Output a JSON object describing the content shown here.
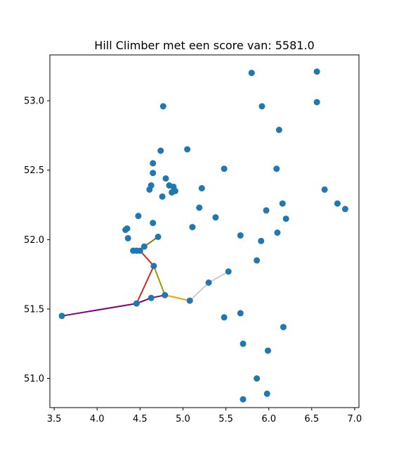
{
  "chart_data": {
    "type": "scatter",
    "title": "Hill Climber met een score van: 5581.0",
    "xlabel": "",
    "ylabel": "",
    "xlim": [
      3.45,
      7.05
    ],
    "ylim": [
      50.79,
      53.33
    ],
    "xticks": [
      3.5,
      4.0,
      4.5,
      5.0,
      5.5,
      6.0,
      6.5,
      7.0
    ],
    "xtick_labels": [
      "3.5",
      "4.0",
      "4.5",
      "5.0",
      "5.5",
      "6.0",
      "6.5",
      "7.0"
    ],
    "yticks": [
      51.0,
      51.5,
      52.0,
      52.5,
      53.0
    ],
    "ytick_labels": [
      "51.0",
      "51.5",
      "52.0",
      "52.5",
      "53.0"
    ],
    "grid": false,
    "point_color": "#1f77b4",
    "points": [
      [
        3.59,
        51.45
      ],
      [
        4.46,
        51.54
      ],
      [
        4.63,
        51.58
      ],
      [
        4.79,
        51.6
      ],
      [
        5.08,
        51.56
      ],
      [
        5.3,
        51.69
      ],
      [
        5.53,
        51.77
      ],
      [
        4.66,
        51.81
      ],
      [
        4.42,
        51.92
      ],
      [
        4.46,
        51.92
      ],
      [
        4.5,
        51.92
      ],
      [
        4.55,
        51.95
      ],
      [
        4.71,
        52.02
      ],
      [
        4.36,
        52.01
      ],
      [
        4.33,
        52.07
      ],
      [
        4.35,
        52.08
      ],
      [
        4.65,
        52.12
      ],
      [
        4.48,
        52.17
      ],
      [
        4.61,
        52.36
      ],
      [
        4.63,
        52.39
      ],
      [
        4.76,
        52.31
      ],
      [
        4.8,
        52.44
      ],
      [
        4.84,
        52.39
      ],
      [
        4.87,
        52.34
      ],
      [
        4.89,
        52.38
      ],
      [
        4.91,
        52.35
      ],
      [
        4.65,
        52.48
      ],
      [
        4.65,
        52.55
      ],
      [
        4.74,
        52.64
      ],
      [
        5.05,
        52.65
      ],
      [
        4.77,
        52.96
      ],
      [
        5.22,
        52.37
      ],
      [
        5.19,
        52.23
      ],
      [
        5.11,
        52.09
      ],
      [
        5.38,
        52.16
      ],
      [
        5.48,
        52.51
      ],
      [
        5.67,
        52.03
      ],
      [
        5.8,
        53.2
      ],
      [
        5.92,
        52.96
      ],
      [
        5.91,
        51.99
      ],
      [
        5.86,
        51.85
      ],
      [
        5.97,
        52.21
      ],
      [
        6.09,
        52.51
      ],
      [
        6.12,
        52.79
      ],
      [
        6.16,
        52.26
      ],
      [
        6.2,
        52.15
      ],
      [
        6.1,
        52.05
      ],
      [
        6.56,
        53.21
      ],
      [
        6.56,
        52.99
      ],
      [
        6.65,
        52.36
      ],
      [
        6.8,
        52.26
      ],
      [
        6.89,
        52.22
      ],
      [
        5.48,
        51.44
      ],
      [
        5.67,
        51.47
      ],
      [
        5.7,
        51.25
      ],
      [
        5.99,
        51.2
      ],
      [
        6.17,
        51.37
      ],
      [
        5.86,
        51.0
      ],
      [
        5.7,
        50.85
      ],
      [
        5.98,
        50.89
      ]
    ],
    "routes": [
      {
        "color": "#800080",
        "points": [
          [
            3.59,
            51.45
          ],
          [
            4.46,
            51.54
          ],
          [
            4.63,
            51.58
          ],
          [
            4.79,
            51.6
          ]
        ]
      },
      {
        "color": "#d62728",
        "points": [
          [
            4.46,
            51.54
          ],
          [
            4.66,
            51.81
          ],
          [
            4.5,
            51.92
          ]
        ]
      },
      {
        "color": "#0000ff",
        "points": [
          [
            4.42,
            51.92
          ],
          [
            4.5,
            51.92
          ]
        ]
      },
      {
        "color": "#ff9900",
        "points": [
          [
            4.79,
            51.6
          ],
          [
            5.08,
            51.56
          ]
        ]
      },
      {
        "color": "#cccccc",
        "points": [
          [
            5.08,
            51.56
          ],
          [
            5.3,
            51.69
          ],
          [
            5.53,
            51.77
          ]
        ]
      },
      {
        "color": "#9a9a00",
        "points": [
          [
            4.66,
            51.81
          ],
          [
            4.79,
            51.6
          ]
        ]
      },
      {
        "color": "#8c7a00",
        "points": [
          [
            4.55,
            51.95
          ],
          [
            4.71,
            52.02
          ]
        ]
      }
    ]
  }
}
